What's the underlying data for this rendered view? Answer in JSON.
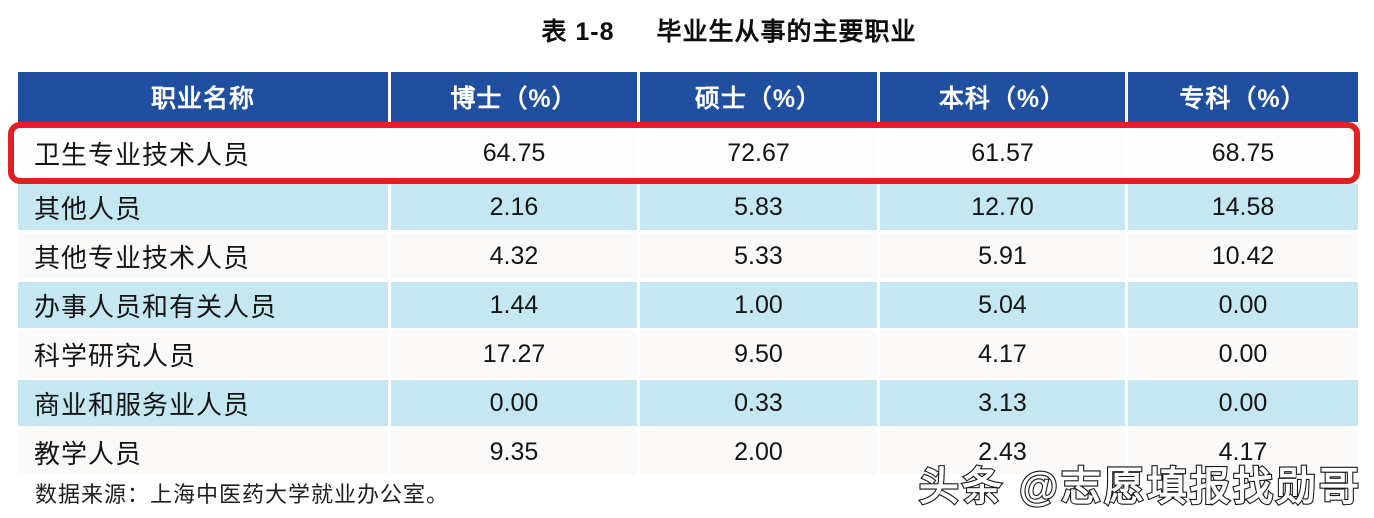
{
  "title": {
    "prefix": "表 1-8",
    "text": "毕业生从事的主要职业"
  },
  "chart_data": {
    "type": "table",
    "title": "表 1-8 毕业生从事的主要职业",
    "columns": [
      "职业名称",
      "博士（%）",
      "硕士（%）",
      "本科（%）",
      "专科（%）"
    ],
    "rows": [
      {
        "name": "卫生专业技术人员",
        "values": [
          "64.75",
          "72.67",
          "61.57",
          "68.75"
        ],
        "highlighted": true
      },
      {
        "name": "其他人员",
        "values": [
          "2.16",
          "5.83",
          "12.70",
          "14.58"
        ]
      },
      {
        "name": "其他专业技术人员",
        "values": [
          "4.32",
          "5.33",
          "5.91",
          "10.42"
        ]
      },
      {
        "name": "办事人员和有关人员",
        "values": [
          "1.44",
          "1.00",
          "5.04",
          "0.00"
        ]
      },
      {
        "name": "科学研究人员",
        "values": [
          "17.27",
          "9.50",
          "4.17",
          "0.00"
        ]
      },
      {
        "name": "商业和服务业人员",
        "values": [
          "0.00",
          "0.33",
          "3.13",
          "0.00"
        ]
      },
      {
        "name": "教学人员",
        "values": [
          "9.35",
          "2.00",
          "2.43",
          "4.17"
        ]
      }
    ]
  },
  "source_note": "数据来源：上海中医药大学就业办公室。",
  "watermark": "头条 @志愿填报找勋哥",
  "colors": {
    "header_bg": "#1f4f9e",
    "row_alt": "#c4e7f1",
    "highlight_border": "#e1201f"
  }
}
